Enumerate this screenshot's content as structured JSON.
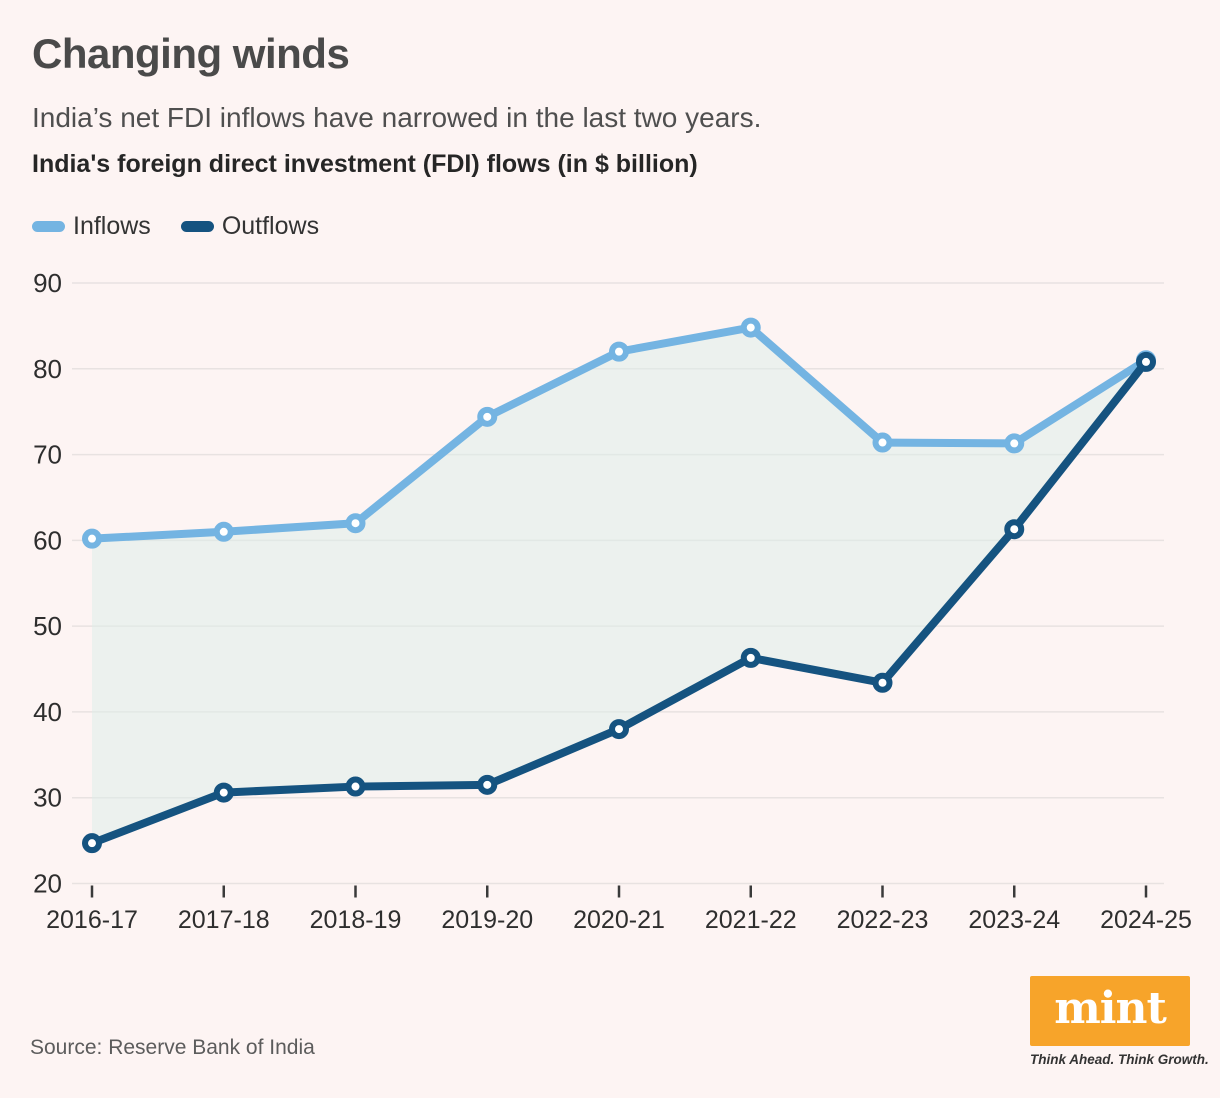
{
  "header": {
    "title": "Changing winds",
    "subtitle": "India’s net FDI inflows have narrowed in the last two years."
  },
  "chart_data": {
    "type": "line",
    "title": "India's foreign direct investment (FDI) flows (in $ billion)",
    "categories": [
      "2016-17",
      "2017-18",
      "2018-19",
      "2019-20",
      "2020-21",
      "2021-22",
      "2022-23",
      "2023-24",
      "2024-25"
    ],
    "series": [
      {
        "name": "Inflows",
        "color": "#74b4e2",
        "values": [
          60.2,
          61.0,
          62.0,
          74.4,
          82.0,
          84.8,
          71.4,
          71.3,
          81.0
        ]
      },
      {
        "name": "Outflows",
        "color": "#155380",
        "values": [
          24.7,
          30.6,
          31.3,
          31.5,
          38.0,
          46.3,
          43.4,
          61.3,
          80.8
        ]
      }
    ],
    "ylim": [
      20,
      90
    ],
    "yticks": [
      20,
      30,
      40,
      50,
      60,
      70,
      80,
      90
    ],
    "grid": true,
    "legend_position": "top-left",
    "styles": {
      "grid_color": "#e8e2e1",
      "tick_color": "#3a3a3a",
      "fill_between": "rgba(219,238,234,0.5)",
      "marker_fill": "#ffffff"
    }
  },
  "footer": {
    "source": "Source: Reserve Bank of India",
    "brand_name": "mint",
    "brand_color": "#f7a42a",
    "tagline": "Think Ahead. Think Growth."
  }
}
